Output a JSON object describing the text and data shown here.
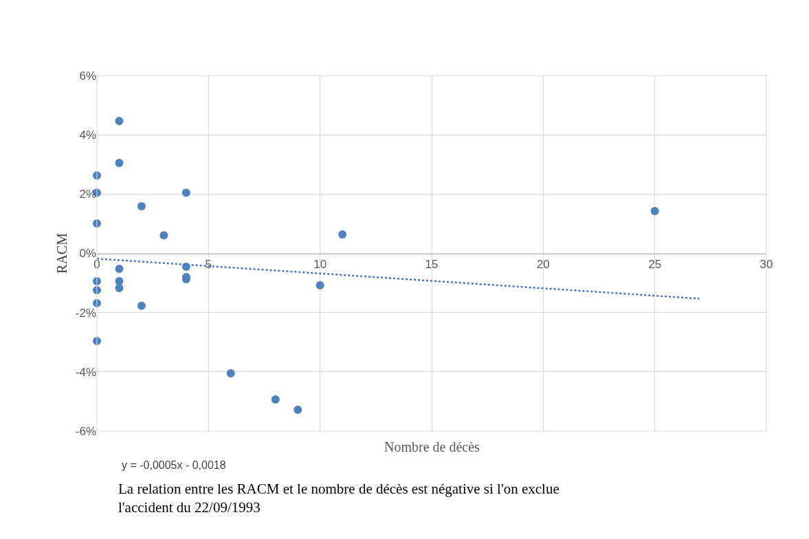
{
  "chart_data": {
    "type": "scatter",
    "xlabel": "Nombre de décès",
    "ylabel": "RACM",
    "xlim": [
      0,
      30
    ],
    "xticks": [
      0,
      5,
      10,
      15,
      20,
      25,
      30
    ],
    "ylim": [
      -6,
      6
    ],
    "yticks": [
      {
        "value": -6,
        "label": "-6%"
      },
      {
        "value": -4,
        "label": "-4%"
      },
      {
        "value": -2,
        "label": "-2%"
      },
      {
        "value": 0,
        "label": "0%"
      },
      {
        "value": 2,
        "label": "2%"
      },
      {
        "value": 4,
        "label": "4%"
      },
      {
        "value": 6,
        "label": "6%"
      }
    ],
    "grid": true,
    "series": [
      {
        "marker": "circle",
        "color": "#4f81bd",
        "x": [
          0,
          0,
          0,
          0,
          0,
          0,
          0,
          1,
          1,
          1,
          1,
          1,
          2,
          2,
          3,
          4,
          4,
          4,
          4,
          6,
          8,
          9,
          10,
          11,
          25
        ],
        "values": [
          2.63,
          2.05,
          1.01,
          -0.94,
          -1.24,
          -1.68,
          -2.96,
          4.47,
          3.05,
          -0.52,
          -0.94,
          -1.17,
          1.59,
          -1.77,
          0.61,
          2.05,
          -0.45,
          -0.8,
          -0.87,
          -4.05,
          -4.93,
          -5.28,
          -1.08,
          0.64,
          1.43
        ]
      },
      {
        "type": "line",
        "color": "#4472c4",
        "line_style": "dotted",
        "x": [
          0,
          27
        ],
        "values": [
          -0.18,
          -1.53
        ]
      }
    ],
    "annotations": [
      "y = -0,0005x - 0,0018",
      "La relation entre les RACM et le nombre de décès est négative si l'on exclue l'accident du 22/09/1993"
    ]
  }
}
